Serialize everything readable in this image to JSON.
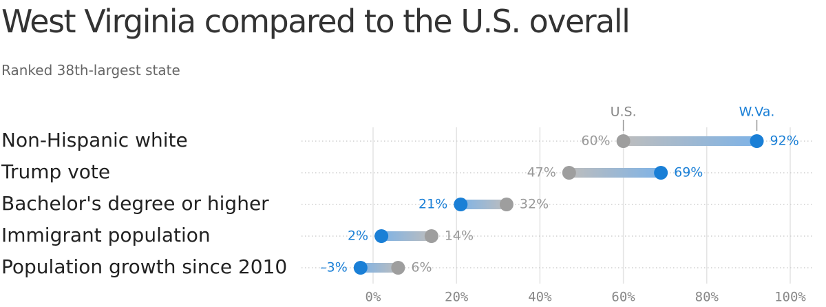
{
  "chart_data": {
    "type": "dot-plot",
    "title": "West Virginia compared to the U.S. overall",
    "subtitle": "Ranked 38th-largest state",
    "legend": {
      "us_label": "U.S.",
      "wva_label": "W.Va.",
      "placement": "top, above first row"
    },
    "xlim": [
      -5,
      100
    ],
    "x_ticks": [
      {
        "value": 0,
        "label": "0%"
      },
      {
        "value": 20,
        "label": "20%"
      },
      {
        "value": 40,
        "label": "40%"
      },
      {
        "value": 60,
        "label": "60%"
      },
      {
        "value": 80,
        "label": "80%"
      },
      {
        "value": 100,
        "label": "100%"
      }
    ],
    "series": [
      {
        "name": "U.S.",
        "color": "#9e9e9e"
      },
      {
        "name": "W.Va.",
        "color": "#1a7fd6"
      }
    ],
    "rows": [
      {
        "category": "Non-Hispanic white",
        "us": 60,
        "wva": 92,
        "us_label": "60%",
        "wva_label": "92%"
      },
      {
        "category": "Trump vote",
        "us": 47,
        "wva": 69,
        "us_label": "47%",
        "wva_label": "69%"
      },
      {
        "category": "Bachelor's degree or higher",
        "us": 32,
        "wva": 21,
        "us_label": "32%",
        "wva_label": "21%"
      },
      {
        "category": "Immigrant population",
        "us": 14,
        "wva": 2,
        "us_label": "14%",
        "wva_label": "2%"
      },
      {
        "category": "Population growth since 2010",
        "us": 6,
        "wva": -3,
        "us_label": "6%",
        "wva_label": "–3%"
      }
    ],
    "grid": true
  }
}
